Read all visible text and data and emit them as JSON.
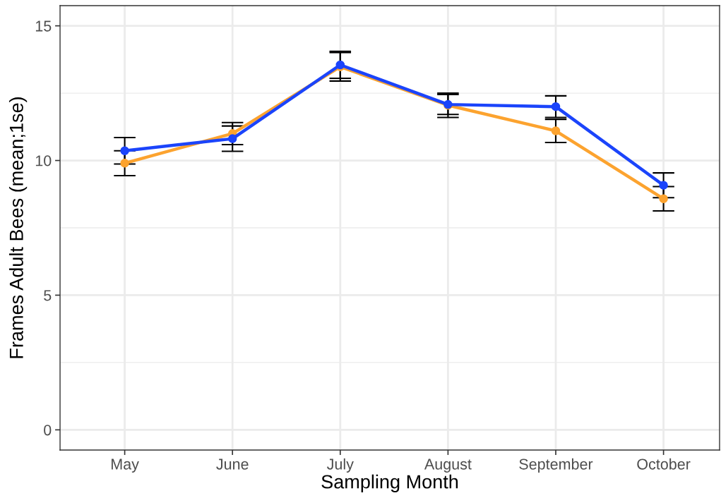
{
  "chart_data": {
    "type": "line",
    "xlabel": "Sampling Month",
    "ylabel": "Frames Adult Bees (mean;1se)",
    "categories": [
      "May",
      "June",
      "July",
      "August",
      "September",
      "October"
    ],
    "series": [
      {
        "color": "#fca32f",
        "values": [
          9.9,
          11.0,
          13.48,
          12.05,
          11.1,
          8.58
        ],
        "errors": [
          0.46,
          0.41,
          0.53,
          0.45,
          0.43,
          0.45
        ]
      },
      {
        "color": "#1b44fb",
        "values": [
          10.36,
          10.81,
          13.55,
          12.08,
          12.0,
          9.08
        ],
        "errors": [
          0.49,
          0.47,
          0.5,
          0.37,
          0.4,
          0.46
        ]
      }
    ],
    "ylim": [
      -0.75,
      15.75
    ],
    "yticks": [
      0,
      5,
      10,
      15
    ],
    "grid": true,
    "marker": "circle",
    "line_style": "solid"
  }
}
